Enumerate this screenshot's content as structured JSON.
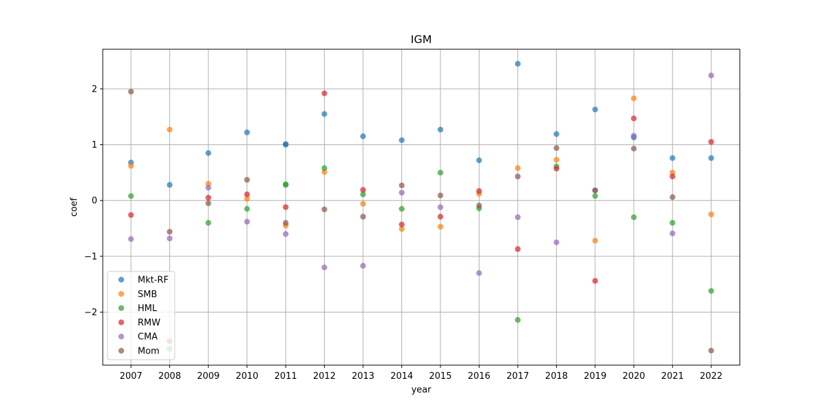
{
  "chart_data": {
    "type": "scatter",
    "title": "IGM",
    "xlabel": "year",
    "ylabel": "coef",
    "x_ticks": [
      "2007",
      "2008",
      "2009",
      "2010",
      "2011",
      "2012",
      "2013",
      "2014",
      "2015",
      "2016",
      "2017",
      "2018",
      "2019",
      "2020",
      "2021",
      "2022"
    ],
    "y_ticks": [
      -2,
      -1,
      0,
      1,
      2
    ],
    "y_tick_labels": [
      "−2",
      "−1",
      "0",
      "1",
      "2"
    ],
    "xlim": [
      2006.27,
      2022.74
    ],
    "ylim": [
      -2.95,
      2.71
    ],
    "grid": true,
    "legend_position": "lower-left",
    "series": [
      {
        "name": "Mkt-RF",
        "color": "#1f77b4",
        "x": [
          2007,
          2008,
          2009,
          2010,
          2011,
          2011,
          2012,
          2013,
          2014,
          2015,
          2016,
          2017,
          2018,
          2019,
          2020,
          2021,
          2022
        ],
        "y": [
          0.68,
          0.28,
          0.85,
          1.22,
          1.01,
          1.0,
          1.55,
          1.15,
          1.08,
          1.27,
          0.72,
          2.45,
          1.19,
          1.63,
          1.13,
          0.76,
          0.76
        ]
      },
      {
        "name": "SMB",
        "color": "#ff7f0e",
        "x": [
          2007,
          2008,
          2009,
          2010,
          2011,
          2012,
          2013,
          2014,
          2015,
          2016,
          2017,
          2018,
          2019,
          2020,
          2021,
          2022
        ],
        "y": [
          0.62,
          1.27,
          0.3,
          0.03,
          -0.45,
          0.51,
          -0.06,
          -0.51,
          -0.47,
          0.12,
          0.58,
          0.73,
          -0.72,
          1.83,
          0.5,
          -0.25
        ]
      },
      {
        "name": "HML",
        "color": "#2ca02c",
        "x": [
          2007,
          2008,
          2009,
          2010,
          2011,
          2011,
          2012,
          2013,
          2014,
          2015,
          2016,
          2017,
          2018,
          2019,
          2020,
          2021,
          2022
        ],
        "y": [
          0.08,
          -2.66,
          -0.4,
          -0.15,
          0.29,
          0.28,
          0.58,
          0.11,
          -0.15,
          0.5,
          -0.14,
          -2.14,
          0.61,
          0.08,
          -0.3,
          -0.4,
          -1.62
        ]
      },
      {
        "name": "RMW",
        "color": "#d62728",
        "x": [
          2007,
          2008,
          2009,
          2010,
          2011,
          2012,
          2013,
          2014,
          2015,
          2016,
          2017,
          2018,
          2019,
          2020,
          2021,
          2022
        ],
        "y": [
          -0.26,
          -2.52,
          0.05,
          0.11,
          -0.12,
          1.92,
          0.19,
          -0.43,
          -0.29,
          0.17,
          -0.87,
          0.57,
          -1.44,
          1.47,
          0.43,
          1.05
        ]
      },
      {
        "name": "CMA",
        "color": "#9467bd",
        "x": [
          2007,
          2008,
          2009,
          2010,
          2011,
          2012,
          2013,
          2014,
          2015,
          2016,
          2017,
          2018,
          2019,
          2020,
          2021,
          2022
        ],
        "y": [
          -0.69,
          -0.68,
          0.23,
          -0.38,
          -0.6,
          -1.2,
          -1.17,
          0.14,
          -0.12,
          -1.3,
          -0.3,
          -0.75,
          0.18,
          1.16,
          -0.59,
          2.24
        ]
      },
      {
        "name": "Mom",
        "color": "#8c564b",
        "x": [
          2007,
          2008,
          2009,
          2010,
          2011,
          2012,
          2013,
          2014,
          2015,
          2016,
          2017,
          2018,
          2019,
          2020,
          2021,
          2022
        ],
        "y": [
          1.95,
          -0.56,
          -0.05,
          0.37,
          -0.4,
          -0.16,
          -0.29,
          0.27,
          0.09,
          -0.09,
          0.43,
          0.94,
          0.18,
          0.93,
          0.06,
          -2.69
        ]
      }
    ]
  }
}
